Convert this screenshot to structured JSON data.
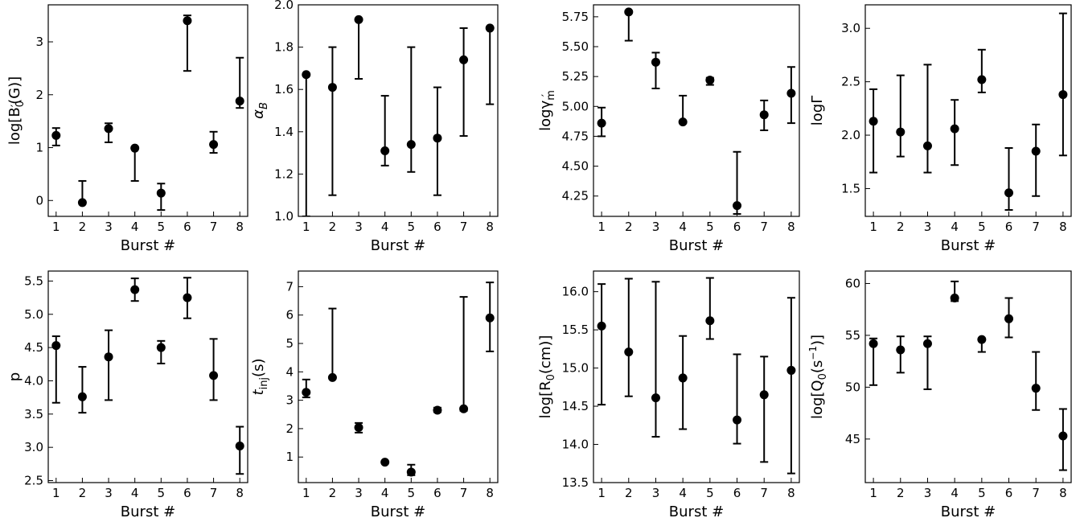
{
  "chart_data": [
    {
      "type": "scatter",
      "xlabel": "Burst #",
      "ylabel": "log[B′0(G)]",
      "ylabel_parts": [
        [
          "log[B",
          "n"
        ],
        [
          "0",
          "sub"
        ],
        [
          "′",
          "supover"
        ],
        [
          "(G)]",
          "n"
        ]
      ],
      "categories": [
        1,
        2,
        3,
        4,
        5,
        6,
        7,
        8
      ],
      "xlim": [
        0.7,
        8.3
      ],
      "ylim": [
        -0.3,
        3.7
      ],
      "yticks": [
        0,
        1,
        2,
        3
      ],
      "ytick_labels": [
        "0",
        "1",
        "2",
        "3"
      ],
      "values": [
        1.23,
        -0.04,
        1.36,
        0.99,
        0.14,
        3.4,
        1.06,
        1.88
      ],
      "err_low": [
        1.04,
        -0.04,
        1.1,
        0.37,
        -0.18,
        2.45,
        0.9,
        1.75
      ],
      "err_high": [
        1.37,
        0.37,
        1.46,
        1.0,
        0.32,
        3.5,
        1.3,
        2.7
      ]
    },
    {
      "type": "scatter",
      "xlabel": "Burst #",
      "ylabel": "αB",
      "ylabel_parts": [
        [
          "α",
          "i"
        ],
        [
          "B",
          "isub"
        ]
      ],
      "categories": [
        1,
        2,
        3,
        4,
        5,
        6,
        7,
        8
      ],
      "xlim": [
        0.7,
        8.3
      ],
      "ylim": [
        1.0,
        2.0
      ],
      "yticks": [
        1.0,
        1.2,
        1.4,
        1.6,
        1.8,
        2.0
      ],
      "ytick_labels": [
        "1.0",
        "1.2",
        "1.4",
        "1.6",
        "1.8",
        "2.0"
      ],
      "values": [
        1.67,
        1.61,
        1.93,
        1.31,
        1.34,
        1.37,
        1.74,
        1.89
      ],
      "err_low": [
        1.0,
        1.1,
        1.65,
        1.24,
        1.21,
        1.1,
        1.38,
        1.53
      ],
      "err_high": [
        1.67,
        1.8,
        1.93,
        1.57,
        1.8,
        1.61,
        1.89,
        1.89
      ]
    },
    {
      "type": "scatter",
      "xlabel": "Burst #",
      "ylabel": "logγ′m",
      "ylabel_parts": [
        [
          "logγ",
          "n"
        ],
        [
          "m",
          "sub"
        ],
        [
          "′",
          "supover"
        ]
      ],
      "categories": [
        1,
        2,
        3,
        4,
        5,
        6,
        7,
        8
      ],
      "xlim": [
        0.7,
        8.3
      ],
      "ylim": [
        4.08,
        5.85
      ],
      "yticks": [
        4.25,
        4.5,
        4.75,
        5.0,
        5.25,
        5.5,
        5.75
      ],
      "ytick_labels": [
        "4.25",
        "4.50",
        "4.75",
        "5.00",
        "5.25",
        "5.50",
        "5.75"
      ],
      "values": [
        4.86,
        5.79,
        5.37,
        4.87,
        5.22,
        4.17,
        4.93,
        5.11
      ],
      "err_low": [
        4.75,
        5.55,
        5.15,
        4.86,
        5.18,
        4.1,
        4.8,
        4.86
      ],
      "err_high": [
        4.99,
        5.8,
        5.45,
        5.09,
        5.24,
        4.62,
        5.05,
        5.33
      ]
    },
    {
      "type": "scatter",
      "xlabel": "Burst #",
      "ylabel": "logΓ",
      "ylabel_parts": [
        [
          "logΓ",
          "n"
        ]
      ],
      "categories": [
        1,
        2,
        3,
        4,
        5,
        6,
        7,
        8
      ],
      "xlim": [
        0.7,
        8.3
      ],
      "ylim": [
        1.24,
        3.22
      ],
      "yticks": [
        1.5,
        2.0,
        2.5,
        3.0
      ],
      "ytick_labels": [
        "1.5",
        "2.0",
        "2.5",
        "3.0"
      ],
      "values": [
        2.13,
        2.03,
        1.9,
        2.06,
        2.52,
        1.46,
        1.85,
        2.38
      ],
      "err_low": [
        1.65,
        1.8,
        1.65,
        1.72,
        2.4,
        1.3,
        1.43,
        1.81
      ],
      "err_high": [
        2.43,
        2.56,
        2.66,
        2.33,
        2.8,
        1.88,
        2.1,
        3.14
      ]
    },
    {
      "type": "scatter",
      "xlabel": "Burst #",
      "ylabel": "p",
      "ylabel_parts": [
        [
          "p",
          "n"
        ]
      ],
      "categories": [
        1,
        2,
        3,
        4,
        5,
        6,
        7,
        8
      ],
      "xlim": [
        0.7,
        8.3
      ],
      "ylim": [
        2.47,
        5.65
      ],
      "yticks": [
        2.5,
        3.0,
        3.5,
        4.0,
        4.5,
        5.0,
        5.5
      ],
      "ytick_labels": [
        "2.5",
        "3.0",
        "3.5",
        "4.0",
        "4.5",
        "5.0",
        "5.5"
      ],
      "values": [
        4.53,
        3.76,
        4.36,
        5.37,
        4.5,
        5.25,
        4.08,
        3.02
      ],
      "err_low": [
        3.67,
        3.52,
        3.71,
        5.2,
        4.26,
        4.94,
        3.71,
        2.6
      ],
      "err_high": [
        4.67,
        4.21,
        4.76,
        5.54,
        4.6,
        5.55,
        4.63,
        3.31
      ]
    },
    {
      "type": "scatter",
      "xlabel": "Burst #",
      "ylabel": "tinj(s)",
      "ylabel_parts": [
        [
          "t",
          "i"
        ],
        [
          "inj",
          "sub"
        ],
        [
          "(s)",
          "n"
        ]
      ],
      "categories": [
        1,
        2,
        3,
        4,
        5,
        6,
        7,
        8
      ],
      "xlim": [
        0.7,
        8.3
      ],
      "ylim": [
        0.1,
        7.55
      ],
      "yticks": [
        1,
        2,
        3,
        4,
        5,
        6,
        7
      ],
      "ytick_labels": [
        "1",
        "2",
        "3",
        "4",
        "5",
        "6",
        "7"
      ],
      "values": [
        3.28,
        3.8,
        2.04,
        0.82,
        0.47,
        2.65,
        2.7,
        5.9
      ],
      "err_low": [
        3.1,
        3.8,
        1.86,
        0.82,
        0.36,
        2.58,
        2.63,
        4.72
      ],
      "err_high": [
        3.73,
        6.23,
        2.2,
        0.82,
        0.73,
        2.74,
        6.64,
        7.15
      ]
    },
    {
      "type": "scatter",
      "xlabel": "Burst #",
      "ylabel": "log[R0(cm)]",
      "ylabel_parts": [
        [
          "log[R",
          "n"
        ],
        [
          "0",
          "sub"
        ],
        [
          "(cm)]",
          "n"
        ]
      ],
      "categories": [
        1,
        2,
        3,
        4,
        5,
        6,
        7,
        8
      ],
      "xlim": [
        0.7,
        8.3
      ],
      "ylim": [
        13.5,
        16.27
      ],
      "yticks": [
        13.5,
        14.0,
        14.5,
        15.0,
        15.5,
        16.0
      ],
      "ytick_labels": [
        "13.5",
        "14.0",
        "14.5",
        "15.0",
        "15.5",
        "16.0"
      ],
      "values": [
        15.55,
        15.21,
        14.61,
        14.87,
        15.62,
        14.32,
        14.65,
        14.97
      ],
      "err_low": [
        14.52,
        14.63,
        14.1,
        14.2,
        15.38,
        14.01,
        13.77,
        13.62
      ],
      "err_high": [
        16.1,
        16.17,
        16.13,
        15.42,
        16.18,
        15.18,
        15.15,
        15.92
      ]
    },
    {
      "type": "scatter",
      "xlabel": "Burst #",
      "ylabel": "log[Q0(s−1)]",
      "ylabel_parts": [
        [
          "log[Q",
          "n"
        ],
        [
          "0",
          "sub"
        ],
        [
          "(s",
          "n"
        ],
        [
          "−1",
          "sup"
        ],
        [
          ")]",
          "n"
        ]
      ],
      "categories": [
        1,
        2,
        3,
        4,
        5,
        6,
        7,
        8
      ],
      "xlim": [
        0.7,
        8.3
      ],
      "ylim": [
        40.8,
        61.2
      ],
      "yticks": [
        45,
        50,
        55,
        60
      ],
      "ytick_labels": [
        "45",
        "50",
        "55",
        "60"
      ],
      "values": [
        54.2,
        53.6,
        54.2,
        58.6,
        54.6,
        56.6,
        49.9,
        45.3
      ],
      "err_low": [
        50.2,
        51.4,
        49.8,
        58.3,
        53.4,
        54.8,
        47.8,
        42.0
      ],
      "err_high": [
        54.7,
        54.9,
        54.9,
        60.2,
        54.6,
        58.6,
        53.4,
        47.9
      ]
    }
  ]
}
